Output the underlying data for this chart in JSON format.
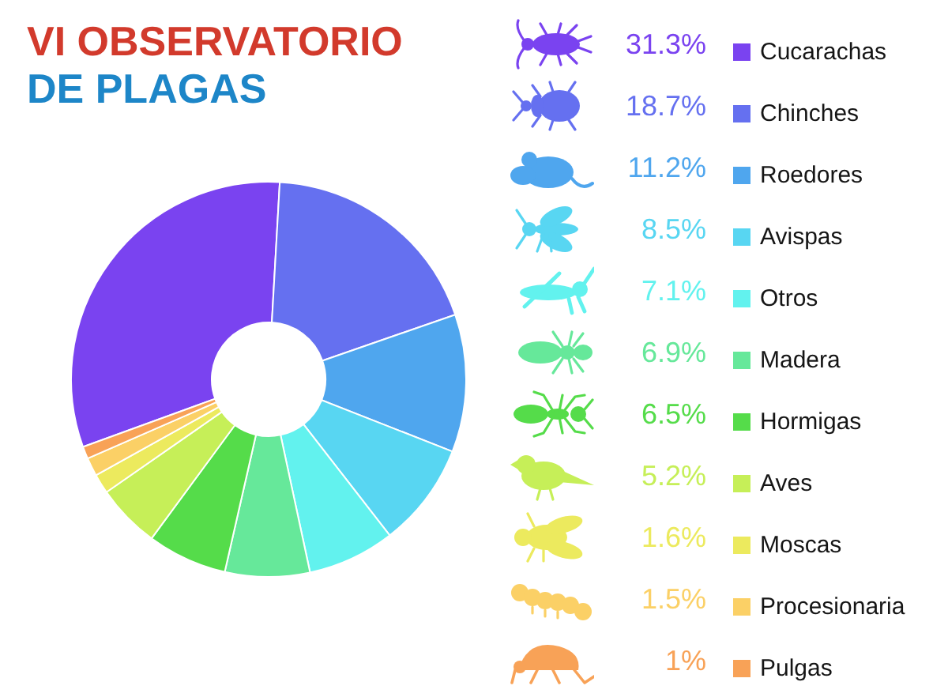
{
  "chart_data": {
    "type": "donut",
    "title": "VI OBSERVATORIO",
    "subtitle": "DE PLAGAS",
    "categories": [
      "Cucarachas",
      "Chinches",
      "Roedores",
      "Avispas",
      "Otros",
      "Madera",
      "Hormigas",
      "Aves",
      "Moscas",
      "Procesionaria",
      "Pulgas"
    ],
    "values": [
      31.3,
      18.7,
      11.2,
      8.5,
      7.1,
      6.9,
      6.5,
      5.2,
      1.6,
      1.5,
      1
    ],
    "value_labels": [
      "31.3%",
      "18.7%",
      "11.2%",
      "8.5%",
      "7.1%",
      "6.9%",
      "6.5%",
      "5.2%",
      "1.6%",
      "1.5%",
      "1%"
    ],
    "colors": [
      "#7a43f0",
      "#6570f0",
      "#4fa6ee",
      "#58d6f2",
      "#62f2ee",
      "#66e89a",
      "#55dc4a",
      "#c6ef58",
      "#ecea5e",
      "#fbd066",
      "#f8a257"
    ],
    "legend": "right"
  }
}
